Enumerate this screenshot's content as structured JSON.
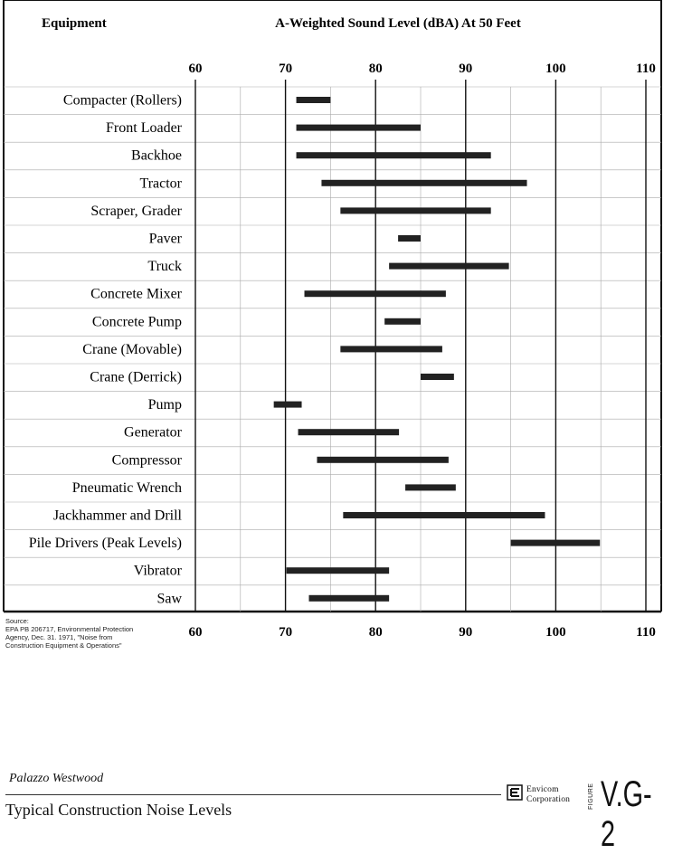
{
  "chart_data": {
    "type": "bar",
    "orientation": "horizontal-range",
    "ylabel_header": "Equipment",
    "title": "A-Weighted Sound Level (dBA) At 50 Feet",
    "xlim": [
      60,
      110
    ],
    "xticks": [
      "60",
      "70",
      "80",
      "90",
      "100",
      "110"
    ],
    "grid": true,
    "categories": [
      "Compacter (Rollers)",
      "Front Loader",
      "Backhoe",
      "Tractor",
      "Scraper, Grader",
      "Paver",
      "Truck",
      "Concrete Mixer",
      "Concrete Pump",
      "Crane (Movable)",
      "Crane (Derrick)",
      "Pump",
      "Generator",
      "Compressor",
      "Pneumatic Wrench",
      "Jackhammer and Drill",
      "Pile Drivers (Peak Levels)",
      "Vibrator",
      "Saw"
    ],
    "ranges": [
      [
        71.2,
        75
      ],
      [
        71.2,
        85
      ],
      [
        71.2,
        92.8
      ],
      [
        74,
        96.8
      ],
      [
        76.1,
        92.8
      ],
      [
        82.5,
        85
      ],
      [
        81.5,
        94.8
      ],
      [
        72.1,
        87.8
      ],
      [
        81,
        85
      ],
      [
        76.1,
        87.4
      ],
      [
        85,
        88.7
      ],
      [
        68.7,
        71.8
      ],
      [
        71.4,
        82.6
      ],
      [
        73.5,
        88.1
      ],
      [
        83.3,
        88.9
      ],
      [
        76.4,
        98.8
      ],
      [
        95,
        104.9
      ],
      [
        70.1,
        81.5
      ],
      [
        72.6,
        81.5
      ]
    ]
  },
  "source_lines": [
    "Source:",
    "EPA PB 206717, Environmental Protection",
    "Agency, Dec. 31. 1971, \"Noise from",
    "Construction Equipment & Operations\""
  ],
  "footer": {
    "project": "Palazzo Westwood",
    "title": "Typical Construction Noise Levels",
    "firm_line1": "Envicom",
    "firm_line2": "Corporation",
    "figure_word": "FIGURE",
    "figure_number": "V.G-2"
  },
  "colors": {
    "bar": "#222222",
    "axis": "#111111",
    "grid": "#aaaaaa"
  }
}
